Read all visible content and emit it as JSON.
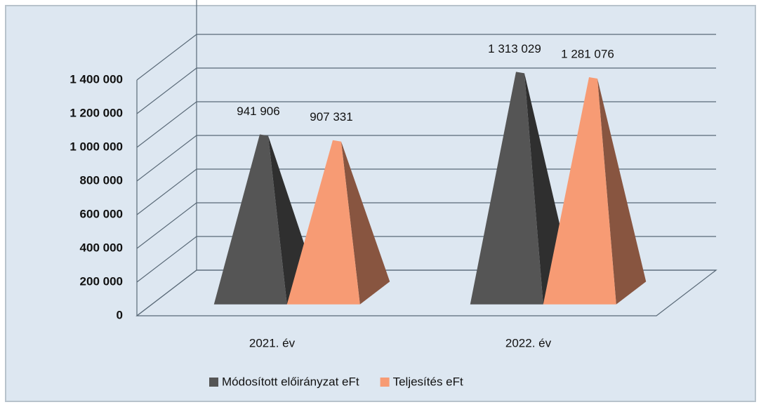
{
  "chart_data": {
    "type": "pyramid",
    "categories": [
      "2021. év",
      "2022. év"
    ],
    "series": [
      {
        "name": "Módosított előirányzat eFt",
        "color": "#555555",
        "values": [
          941906,
          1313029
        ],
        "value_labels": [
          "941 906",
          "1 313 029"
        ]
      },
      {
        "name": "Teljesítés eFt",
        "color": "#f79b74",
        "values": [
          907331,
          1281076
        ],
        "value_labels": [
          "907 331",
          "1 281 076"
        ]
      }
    ],
    "ylim": [
      0,
      1400000
    ],
    "yticks": [
      0,
      {
        "value": 200000,
        "label": "200 000"
      },
      {
        "value": 400000,
        "label": "400 000"
      },
      {
        "value": 600000,
        "label": "600 000"
      },
      {
        "value": 800000,
        "label": "800 000"
      },
      {
        "value": 1000000,
        "label": "1 000 000"
      },
      {
        "value": 1200000,
        "label": "1 200 000"
      },
      {
        "value": 1400000,
        "label": "1 400 000"
      }
    ],
    "grid": true,
    "legend": "bottom"
  }
}
